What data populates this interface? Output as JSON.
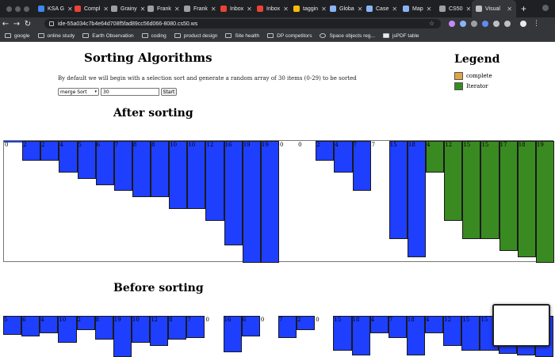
{
  "browser": {
    "tabs": [
      {
        "label": "KSA G",
        "color": "#4285f4"
      },
      {
        "label": "Compl",
        "color": "#ea4335"
      },
      {
        "label": "Grainy",
        "color": "#9aa0a6"
      },
      {
        "label": "Frank",
        "color": "#9aa0a6"
      },
      {
        "label": "Frank",
        "color": "#9aa0a6"
      },
      {
        "label": "Inbox",
        "color": "#ea4335"
      },
      {
        "label": "Inbox",
        "color": "#ea4335"
      },
      {
        "label": "taggin",
        "color": "#fbbc04"
      },
      {
        "label": "Globa",
        "color": "#8ab4f8"
      },
      {
        "label": "Case",
        "color": "#8ab4f8"
      },
      {
        "label": "Map",
        "color": "#8ab4f8"
      },
      {
        "label": "CS50",
        "color": "#9aa0a6"
      },
      {
        "label": "Visual",
        "color": "#bdc1c6",
        "active": true
      }
    ],
    "url": "ide-55a034c7b4e64d708f5fad89cc56d066-8080.cs50.ws",
    "bookmarks": [
      "google",
      "online study",
      "Earth Observation",
      "coding",
      "product design",
      "Site health",
      "DP competitors",
      "Space objects reg...",
      "jsPDF table"
    ]
  },
  "page": {
    "title": "Sorting Algorithms",
    "description": "By default we will begin with a selection sort and generate a random array of 30 items (0-29) to be sorted",
    "algorithm_select": "merge Sort",
    "size_value": "30",
    "start_label": "Start",
    "after_heading": "After sorting",
    "before_heading": "Before sorting"
  },
  "legend": {
    "title": "Legend",
    "items": [
      {
        "label": "complete",
        "color": "#e0a545"
      },
      {
        "label": "Iterator",
        "color": "#3a8a22"
      }
    ]
  },
  "colors": {
    "bar_blue": "#1f3fff",
    "bar_green": "#3a8a22",
    "empty": "#ffffff"
  },
  "after_bars": [
    {
      "value": 0,
      "color": "white"
    },
    {
      "value": 2,
      "color": "blue"
    },
    {
      "value": 2,
      "color": "blue"
    },
    {
      "value": 4,
      "color": "blue"
    },
    {
      "value": 5,
      "color": "blue"
    },
    {
      "value": 6,
      "color": "blue"
    },
    {
      "value": 7,
      "color": "blue"
    },
    {
      "value": 8,
      "color": "blue"
    },
    {
      "value": 8,
      "color": "blue"
    },
    {
      "value": 10,
      "color": "blue"
    },
    {
      "value": 10,
      "color": "blue"
    },
    {
      "value": 12,
      "color": "blue"
    },
    {
      "value": 16,
      "color": "blue"
    },
    {
      "value": 19,
      "color": "blue"
    },
    {
      "value": 19,
      "color": "blue"
    },
    {
      "value": 0,
      "color": "white"
    },
    {
      "value": 0,
      "color": "white"
    },
    {
      "value": 2,
      "color": "blue"
    },
    {
      "value": 4,
      "color": "blue"
    },
    {
      "value": 7,
      "color": "blue"
    },
    {
      "value": 7,
      "color": "white"
    },
    {
      "value": 15,
      "color": "blue"
    },
    {
      "value": 18,
      "color": "blue"
    },
    {
      "value": 4,
      "color": "green"
    },
    {
      "value": 12,
      "color": "green"
    },
    {
      "value": 15,
      "color": "green"
    },
    {
      "value": 15,
      "color": "green"
    },
    {
      "value": 17,
      "color": "green"
    },
    {
      "value": 18,
      "color": "green"
    },
    {
      "value": 19,
      "color": "green"
    }
  ],
  "before_bars": [
    {
      "value": 5,
      "color": "blue"
    },
    {
      "value": 6,
      "color": "blue"
    },
    {
      "value": 4,
      "color": "blue"
    },
    {
      "value": 10,
      "color": "blue"
    },
    {
      "value": 2,
      "color": "blue"
    },
    {
      "value": 8,
      "color": "blue"
    },
    {
      "value": 19,
      "color": "blue"
    },
    {
      "value": 10,
      "color": "blue"
    },
    {
      "value": 12,
      "color": "blue"
    },
    {
      "value": 8,
      "color": "blue"
    },
    {
      "value": 7,
      "color": "blue"
    },
    {
      "value": 0,
      "color": "white"
    },
    {
      "value": 16,
      "color": "blue"
    },
    {
      "value": 6,
      "color": "blue"
    },
    {
      "value": 0,
      "color": "white"
    },
    {
      "value": 7,
      "color": "blue"
    },
    {
      "value": 2,
      "color": "blue"
    },
    {
      "value": 0,
      "color": "white"
    },
    {
      "value": 15,
      "color": "blue"
    },
    {
      "value": 18,
      "color": "blue"
    },
    {
      "value": 4,
      "color": "blue"
    },
    {
      "value": 7,
      "color": "blue"
    },
    {
      "value": 18,
      "color": "blue"
    },
    {
      "value": 4,
      "color": "blue"
    },
    {
      "value": 12,
      "color": "blue"
    },
    {
      "value": 15,
      "color": "blue"
    },
    {
      "value": 15,
      "color": "blue"
    },
    {
      "value": 17,
      "color": "blue"
    },
    {
      "value": 18,
      "color": "blue"
    },
    {
      "value": 19,
      "color": "blue"
    }
  ]
}
